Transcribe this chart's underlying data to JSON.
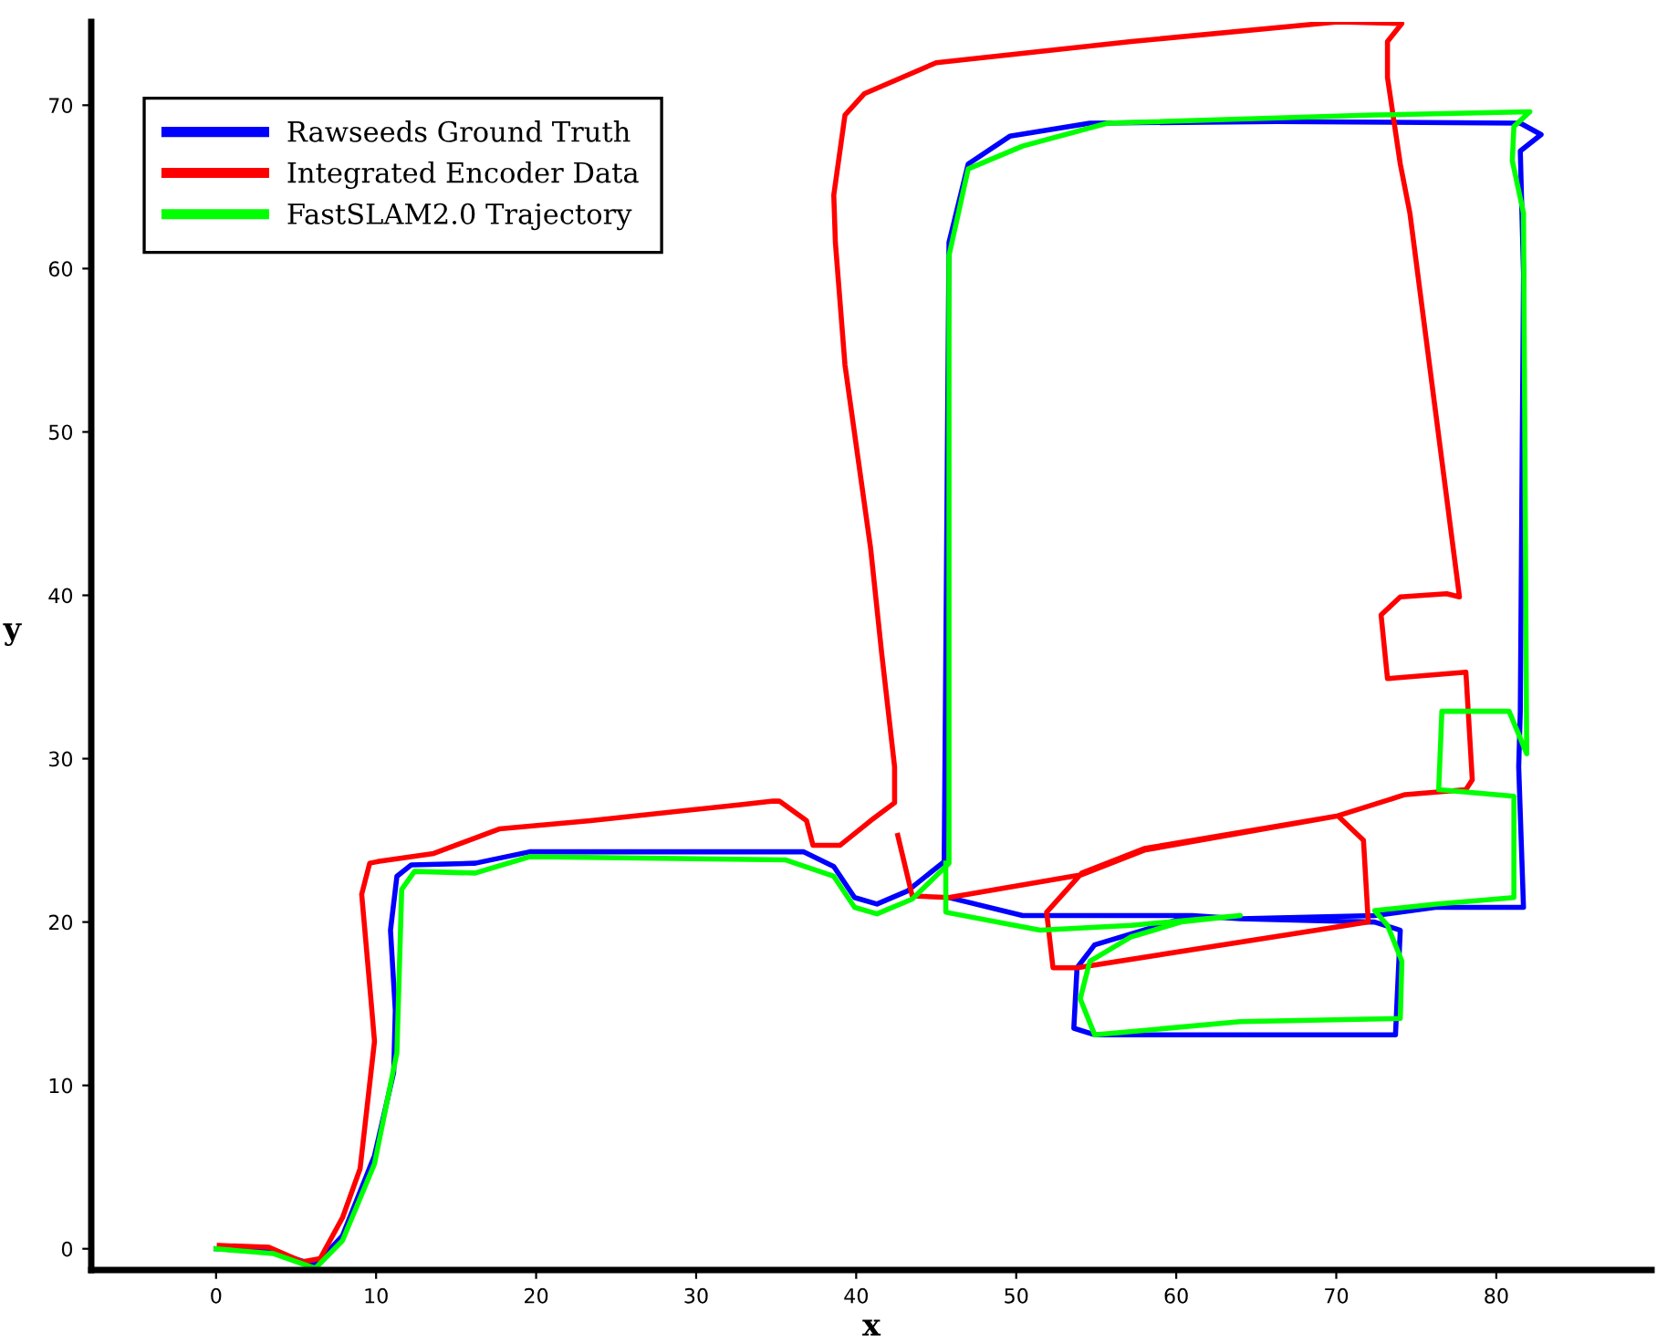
{
  "chart_data": {
    "type": "line",
    "xlabel": "x",
    "ylabel": "y",
    "xlim": [
      -7.8,
      89.7
    ],
    "ylim": [
      -1.3,
      75.1
    ],
    "xticks": [
      0,
      10,
      20,
      30,
      40,
      50,
      60,
      70,
      80
    ],
    "yticks": [
      0,
      10,
      20,
      30,
      40,
      50,
      60,
      70
    ],
    "grid": false,
    "legend": "top left",
    "marker": "none",
    "line_style": "solid",
    "series": [
      {
        "name": "Rawseeds Ground Truth",
        "color": "#0000ff",
        "x": [
          0,
          3.6,
          6.2,
          7.9,
          9.9,
          11.1,
          11.2,
          10.9,
          11.3,
          12.2,
          16.2,
          19.6,
          36.7,
          38.6,
          39.9,
          41.3,
          43.2,
          45.5,
          45.8,
          47.0,
          49.6,
          54.6,
          66.3,
          81.5,
          82.8,
          81.5,
          81.7,
          81.5,
          81.4,
          81.7,
          76.2,
          72.4,
          64.0,
          61.0,
          54.9,
          53.8,
          53.6,
          54.9,
          73.7,
          74.0,
          72.4,
          64.0,
          61.0,
          57.2,
          50.4,
          45.8
        ],
        "values": [
          0,
          -0.2,
          -1.0,
          0.8,
          5.7,
          10.8,
          14.6,
          19.5,
          22.8,
          23.5,
          23.6,
          24.3,
          24.3,
          23.4,
          21.5,
          21.1,
          21.9,
          23.7,
          61.6,
          66.4,
          68.1,
          68.9,
          69.0,
          68.9,
          68.2,
          67.2,
          59.7,
          32.9,
          29.5,
          20.9,
          20.9,
          20.4,
          20.2,
          20.4,
          18.6,
          17.2,
          13.5,
          13.1,
          13.1,
          19.5,
          20.0,
          20.2,
          20.4,
          20.4,
          20.4,
          21.5
        ]
      },
      {
        "name": "Integrated Encoder Data",
        "color": "#ff0000",
        "x": [
          0.2,
          3.3,
          5.4,
          6.5,
          7.9,
          9.0,
          9.9,
          9.7,
          9.1,
          9.6,
          10.1,
          13.6,
          17.7,
          23.4,
          32.9,
          34.8,
          35.2,
          36.9,
          37.3,
          39.0,
          40.9,
          42.4,
          42.4,
          41.6,
          40.9,
          39.3,
          38.7,
          38.6,
          39.3,
          40.5,
          45.0,
          57.2,
          70.1,
          74.1,
          73.2,
          73.2,
          74.0,
          74.6,
          77.7,
          76.9,
          74.0,
          72.8,
          73.2,
          78.1,
          78.5,
          78.1,
          74.3,
          70.1,
          71.7,
          72.0,
          53.8,
          52.3,
          51.9,
          54.1,
          58.0,
          70.1,
          58.0,
          54.1,
          45.8,
          43.5,
          42.6
        ],
        "values": [
          0.2,
          0.1,
          -0.8,
          -0.6,
          1.9,
          4.9,
          12.7,
          15.0,
          21.7,
          23.6,
          23.7,
          24.2,
          25.7,
          26.2,
          27.2,
          27.4,
          27.4,
          26.2,
          24.7,
          24.7,
          26.2,
          27.3,
          29.5,
          36.4,
          42.9,
          54.1,
          61.6,
          64.5,
          69.4,
          70.7,
          72.6,
          73.9,
          75.1,
          75.0,
          73.9,
          71.7,
          66.4,
          63.4,
          39.9,
          40.1,
          39.9,
          38.8,
          34.9,
          35.3,
          28.7,
          28.1,
          27.8,
          26.5,
          25.0,
          20.0,
          17.2,
          17.2,
          20.6,
          23.0,
          24.5,
          26.5,
          24.4,
          22.9,
          21.5,
          21.6,
          25.3
        ]
      },
      {
        "name": "FastSLAM2.0 Trajectory",
        "color": "#00ff00",
        "x": [
          0,
          3.6,
          6.2,
          7.9,
          9.9,
          11.3,
          11.6,
          12.4,
          16.2,
          19.6,
          35.6,
          38.6,
          39.9,
          41.3,
          43.5,
          45.8,
          45.8,
          47.0,
          50.4,
          55.7,
          72.4,
          82.1,
          81.1,
          81.0,
          81.7,
          81.9,
          80.8,
          76.6,
          76.4,
          81.1,
          81.1,
          76.2,
          72.4,
          73.2,
          74.1,
          74.0,
          64.0,
          54.9,
          54.0,
          54.6,
          57.2,
          60.3,
          64.0,
          57.2,
          51.5,
          45.6,
          45.6
        ],
        "values": [
          0,
          -0.3,
          -1.2,
          0.5,
          5.2,
          12.0,
          22.0,
          23.1,
          23.0,
          24.0,
          23.8,
          22.8,
          20.9,
          20.5,
          21.4,
          23.6,
          60.8,
          66.1,
          67.5,
          68.9,
          69.4,
          69.6,
          68.7,
          66.6,
          63.4,
          30.3,
          32.9,
          32.9,
          28.1,
          27.7,
          21.5,
          21.1,
          20.7,
          19.8,
          17.6,
          14.1,
          13.9,
          13.1,
          15.3,
          17.6,
          19.1,
          20.0,
          20.4,
          19.8,
          19.5,
          20.6,
          23.6
        ]
      }
    ]
  }
}
